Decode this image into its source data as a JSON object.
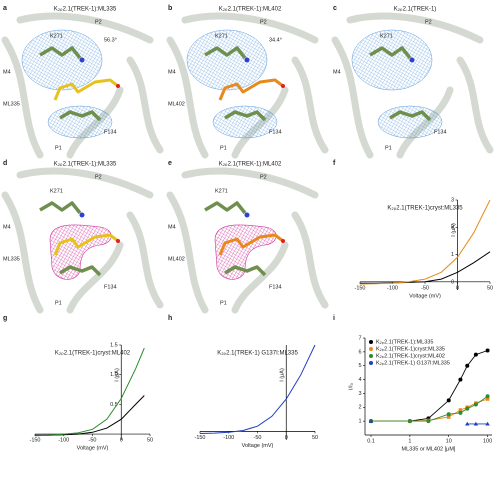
{
  "structure_panels": [
    {
      "letter": "a",
      "title": "K₂ₚ2.1(TREK-1):ML335",
      "mesh_color": "#4a90d9",
      "ligand_color": "#e8c21c",
      "labels": {
        "p2": "P2",
        "k271": "K271",
        "m4": "M4",
        "angle": "56.3°",
        "ligand": "ML335",
        "p1": "P1",
        "f134": "F134"
      }
    },
    {
      "letter": "b",
      "title": "K₂ₚ2.1(TREK-1):ML402",
      "mesh_color": "#4a90d9",
      "ligand_color": "#e8891c",
      "labels": {
        "p2": "P2",
        "k271": "K271",
        "m4": "M4",
        "angle": "34.4°",
        "ligand": "ML402",
        "p1": "P1",
        "f134": "F134"
      }
    },
    {
      "letter": "c",
      "title": "K₂ₚ2.1(TREK-1)",
      "mesh_color": "#4a90d9",
      "labels": {
        "p2": "P2",
        "k271": "K271",
        "m4": "M4",
        "p1": "P1",
        "f134": "F134"
      }
    },
    {
      "letter": "d",
      "title": "K₂ₚ2.1(TREK-1):ML335",
      "mesh_color": "#d0309a",
      "ligand_color": "#e8c21c",
      "labels": {
        "p2": "P2",
        "k271": "K271",
        "m4": "M4",
        "ligand": "ML335",
        "p1": "P1",
        "f134": "F134"
      }
    },
    {
      "letter": "e",
      "title": "K₂ₚ2.1(TREK-1):ML402",
      "mesh_color": "#d0309a",
      "ligand_color": "#e8891c",
      "labels": {
        "p2": "P2",
        "k271": "K271",
        "m4": "M4",
        "ligand": "ML402",
        "p1": "P1",
        "f134": "F134"
      }
    }
  ],
  "chart_data": [
    {
      "type": "line",
      "letter": "f",
      "title": "K₂ₚ2.1(TREK-1)cryst:ML335",
      "xlabel": "Voltage (mV)",
      "ylabel": "I (μA)",
      "axes_at_origin": true,
      "x": [
        -150,
        -125,
        -100,
        -75,
        -50,
        -25,
        0,
        25,
        50
      ],
      "series": [
        {
          "name": "control",
          "color": "#000000",
          "values": [
            -0.05,
            -0.05,
            -0.04,
            -0.02,
            0.0,
            0.1,
            0.35,
            0.7,
            1.1
          ]
        },
        {
          "name": "ML335",
          "color": "#e8891c",
          "values": [
            -0.08,
            -0.07,
            -0.05,
            0.0,
            0.1,
            0.35,
            0.9,
            1.8,
            3.0
          ]
        }
      ],
      "xlim": [
        -150,
        50
      ],
      "ylim": [
        -0.3,
        3
      ],
      "xticks": [
        -150,
        -100,
        -50,
        0,
        50
      ],
      "yticks": [
        0,
        1,
        2,
        3
      ]
    },
    {
      "type": "line",
      "letter": "g",
      "title": "K₂ₚ2.1(TREK-1)cryst:ML402",
      "xlabel": "Voltage (mV)",
      "ylabel": "I (μA)",
      "axes_at_origin": true,
      "x": [
        -150,
        -125,
        -100,
        -75,
        -50,
        -25,
        0,
        25,
        40
      ],
      "series": [
        {
          "name": "control",
          "color": "#000000",
          "values": [
            -0.02,
            -0.02,
            -0.01,
            0.0,
            0.03,
            0.1,
            0.25,
            0.5,
            0.65
          ]
        },
        {
          "name": "ML402",
          "color": "#2e8b2e",
          "values": [
            -0.03,
            -0.02,
            0.0,
            0.02,
            0.08,
            0.25,
            0.6,
            1.1,
            1.45
          ]
        }
      ],
      "xlim": [
        -150,
        50
      ],
      "ylim": [
        -0.1,
        1.5
      ],
      "xticks": [
        -150,
        -100,
        -50,
        0,
        50
      ],
      "yticks": [
        {
          "value": 0.5,
          "label": "0.5"
        },
        {
          "value": 1,
          "label": "1.0"
        },
        {
          "value": 1.5,
          "label": "1.5"
        }
      ]
    },
    {
      "type": "line",
      "letter": "h",
      "title": "K₂ₚ2.1(TREK-1) G137I:ML335",
      "xlabel": "Voltage (mV)",
      "ylabel": "I (μA)",
      "axes_at_origin": true,
      "x": [
        -150,
        -125,
        -100,
        -75,
        -50,
        -25,
        0,
        25,
        50
      ],
      "series": [
        {
          "name": "ML335",
          "color": "#1f3fbf",
          "values": [
            -0.05,
            -0.04,
            -0.02,
            0.02,
            0.12,
            0.35,
            0.75,
            1.3,
            2.0
          ]
        }
      ],
      "xlim": [
        -150,
        50
      ],
      "ylim": [
        -0.2,
        2
      ],
      "xticks": [
        -150,
        -100,
        -50,
        0,
        50
      ],
      "yticks": []
    },
    {
      "type": "scatter",
      "letter": "i",
      "xlabel": "ML335 or ML402 [μM]",
      "ylabel": "I/I₀",
      "log_x": true,
      "x": [
        0.1,
        1,
        3,
        10,
        20,
        30,
        50,
        100
      ],
      "series": [
        {
          "name": "K₂ₚ2.1(TREK-1):ML335",
          "color": "#000000",
          "values": [
            1,
            1,
            1.2,
            2.5,
            4,
            5,
            5.8,
            6.1
          ]
        },
        {
          "name": "K₂ₚ2.1(TREK-1)cryst:ML335",
          "color": "#e8891c",
          "values": [
            1,
            1,
            1.05,
            1.3,
            1.8,
            2,
            2.3,
            2.6
          ]
        },
        {
          "name": "K₂ₚ2.1(TREK-1)cryst:ML402",
          "color": "#2e8b2e",
          "values": [
            1,
            1,
            1,
            1.5,
            1.6,
            1.9,
            2.2,
            2.8
          ]
        },
        {
          "name": "K₂ₚ2.1(TREK-1) G137I:ML335",
          "color": "#1f3fbf",
          "values": [
            1,
            null,
            null,
            null,
            null,
            0.8,
            0.8,
            0.8
          ]
        }
      ],
      "xlim": [
        0.07,
        130
      ],
      "ylim": [
        0,
        7
      ],
      "xticks": [
        0.1,
        1,
        10,
        100
      ],
      "yticks": [
        1,
        2,
        3,
        4,
        5,
        6,
        7
      ]
    }
  ]
}
